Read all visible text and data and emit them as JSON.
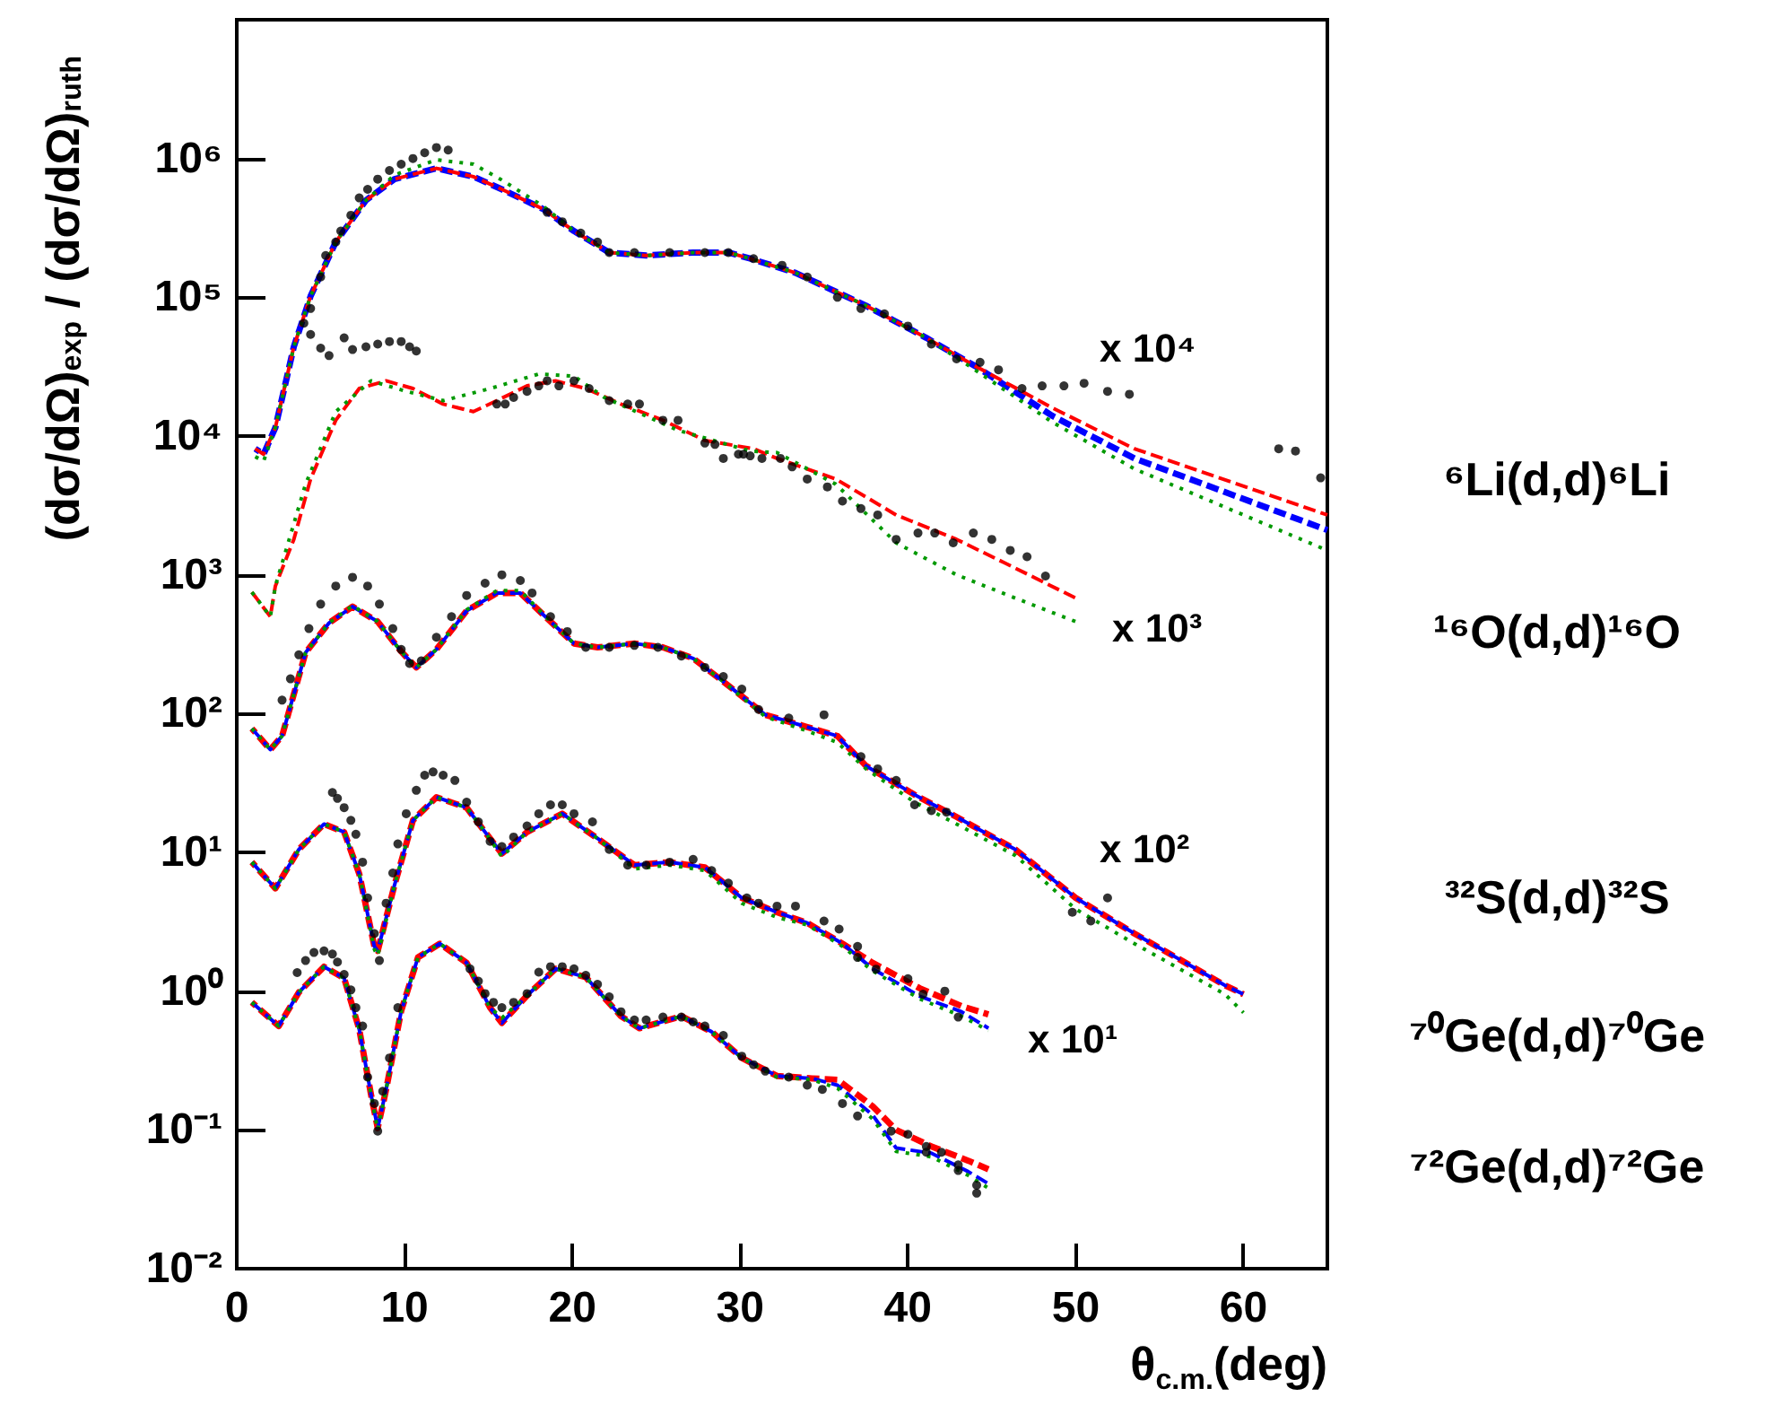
{
  "chart_data": {
    "type": "line",
    "xlabel": "θ$_{c.m.}$(deg)",
    "ylabel": "(dσ/dΩ)$_{exp}$ / (dσ/dΩ)$_{ruth}$",
    "log": "y",
    "xlim": [
      0,
      65
    ],
    "xticks": [
      0,
      10,
      20,
      30,
      40,
      50,
      60
    ],
    "ylim": [
      0.01,
      10000000
    ],
    "yticks": [
      {
        "value": 0.01,
        "label": "10⁻²"
      },
      {
        "value": 0.1,
        "label": "10⁻¹"
      },
      {
        "value": 1,
        "label": "10⁰"
      },
      {
        "value": 10,
        "label": "10¹"
      },
      {
        "value": 100,
        "label": "10²"
      },
      {
        "value": 1000,
        "label": "10³"
      },
      {
        "value": 10000,
        "label": "10⁴"
      },
      {
        "value": 100000,
        "label": "10⁵"
      },
      {
        "value": 1000000,
        "label": "10⁶"
      }
    ],
    "grid": false,
    "series": [
      {
        "color": "#ff0000",
        "line_style": "dashed",
        "marker": "none",
        "x": [
          1.1,
          1.6,
          2.3,
          3.4,
          4.4,
          5.9,
          7.7,
          9.4,
          11.9,
          14.1,
          15.8,
          18.3,
          20.1,
          22.2,
          24.4,
          27.2,
          29.3,
          30.6,
          33.3,
          37.5,
          41.1,
          44,
          48.6,
          53.5,
          65
        ],
        "values": [
          8100,
          7400,
          11500,
          44000,
          102000,
          250000,
          500000,
          710000,
          850000,
          740000,
          600000,
          430000,
          300000,
          210000,
          200000,
          210000,
          210000,
          190000,
          150000,
          87000,
          51000,
          32000,
          16000,
          8100,
          2700
        ]
      },
      {
        "color": "#0000ff",
        "line_style": "dashed",
        "marker": "none",
        "x": [
          1.1,
          1.6,
          2.3,
          3.4,
          4.4,
          5.9,
          7.7,
          9.4,
          11.9,
          14.1,
          15.8,
          18.3,
          20.1,
          22.2,
          24.4,
          27.2,
          29.3,
          30.6,
          33.3,
          37.5,
          41.1,
          44,
          48.6,
          53.5,
          65
        ],
        "values": [
          8100,
          7400,
          11500,
          44000,
          102000,
          250000,
          500000,
          710000,
          850000,
          740000,
          600000,
          430000,
          300000,
          210000,
          200000,
          210000,
          210000,
          190000,
          150000,
          87000,
          51000,
          32000,
          14000,
          6900,
          2100
        ]
      },
      {
        "color": "#009900",
        "line_style": "dotted",
        "marker": "none",
        "x": [
          1.1,
          1.6,
          2.3,
          3.4,
          4.4,
          5.9,
          7.7,
          9.4,
          11.9,
          14.1,
          15.8,
          18.3,
          20.1,
          22.2,
          24.4,
          27.2,
          29.3,
          30.6,
          33.3,
          37.5,
          41.1,
          44,
          48.6,
          53.5,
          65
        ],
        "values": [
          7100,
          6600,
          11500,
          44000,
          102000,
          250000,
          500000,
          760000,
          980000,
          910000,
          700000,
          450000,
          300000,
          210000,
          200000,
          210000,
          210000,
          190000,
          150000,
          87000,
          51000,
          30000,
          12600,
          5800,
          1500
        ]
      },
      {
        "type": "scatter",
        "color": "#000000",
        "marker": "circle",
        "x": [
          4.0,
          4.4,
          5.0,
          5.5,
          6.4,
          6.9,
          7.7,
          8.4,
          9.1,
          9.8,
          10.3,
          10.7,
          4.4,
          5.0,
          5.3,
          5.9,
          6.2,
          6.8,
          7.3,
          7.8,
          8.4,
          9.1,
          9.8,
          10.5,
          11.2,
          11.9,
          12.6,
          18.5,
          19.4,
          20.5,
          21.5,
          22.2,
          23.7,
          25.8,
          27.9,
          29.3,
          30.8,
          32.5,
          34.0,
          35.8,
          37.2,
          38.6,
          40.0,
          41.4,
          42.9,
          44.3,
          45.4,
          46.8,
          48.0,
          49.3,
          50.5,
          51.9,
          53.2,
          62.1,
          63.1,
          64.6
        ],
        "values": [
          65000,
          54000,
          43000,
          38000,
          51000,
          42000,
          44000,
          46000,
          48000,
          48000,
          44000,
          41000,
          83000,
          140000,
          200000,
          250000,
          300000,
          390000,
          520000,
          600000,
          710000,
          820000,
          910000,
          1000000,
          1100000,
          1200000,
          1150000,
          410000,
          350000,
          290000,
          250000,
          210000,
          210000,
          210000,
          210000,
          210000,
          190000,
          170000,
          140000,
          100000,
          83000,
          76000,
          62000,
          46000,
          36000,
          34000,
          30000,
          22000,
          23000,
          23000,
          24000,
          21000,
          20000,
          8100,
          7800,
          5000
        ]
      },
      {
        "color": "#ff0000",
        "line_style": "dashed",
        "marker": "none",
        "x": [
          0.9,
          2.0,
          2.3,
          3.4,
          4.4,
          5.9,
          7.3,
          8.9,
          10.5,
          12.3,
          14.1,
          15.5,
          17.3,
          19.0,
          20.8,
          22.9,
          25.4,
          27.9,
          30.8,
          32.2,
          35.7,
          39.3,
          42.9,
          45.7,
          50.0
        ],
        "values": [
          750,
          500,
          830,
          1800,
          4900,
          13000,
          22000,
          25000,
          22000,
          17000,
          15000,
          18000,
          23000,
          25000,
          22000,
          17000,
          13000,
          9300,
          8100,
          6900,
          4900,
          2700,
          1800,
          1230,
          680
        ]
      },
      {
        "color": "#009900",
        "line_style": "dotted",
        "marker": "none",
        "x": [
          0.9,
          2.0,
          2.3,
          4.1,
          5.9,
          8.0,
          10.1,
          12.3,
          15.1,
          18.0,
          20.1,
          21.9,
          26.3,
          30.6,
          32.2,
          35.7,
          39.3,
          42.9,
          46.4,
          50.0
        ],
        "values": [
          750,
          500,
          830,
          4500,
          15000,
          25000,
          21000,
          18000,
          22000,
          28000,
          27000,
          19000,
          11000,
          7800,
          7600,
          4500,
          1700,
          1000,
          680,
          460
        ]
      },
      {
        "type": "scatter",
        "color": "#000000",
        "marker": "circle",
        "x": [
          15.5,
          16.0,
          16.5,
          17.3,
          18.0,
          18.5,
          19.2,
          20.1,
          21.0,
          22.2,
          23.3,
          24.0,
          25.4,
          26.3,
          27.9,
          28.5,
          29.0,
          29.9,
          30.6,
          30.2,
          31.3,
          32.4,
          33.1,
          34.0,
          35.2,
          36.1,
          37.2,
          38.2,
          39.3,
          40.6,
          41.6,
          42.7,
          43.9,
          45.0,
          46.1,
          47.1,
          48.2
        ],
        "values": [
          17000,
          17000,
          19000,
          21000,
          23000,
          25000,
          23000,
          25000,
          22000,
          18000,
          17000,
          17000,
          13000,
          13000,
          8900,
          8700,
          6900,
          7400,
          7200,
          7400,
          6900,
          6900,
          6000,
          4900,
          4300,
          3400,
          3000,
          2700,
          1800,
          2000,
          2000,
          1700,
          2000,
          1800,
          1500,
          1350,
          980
        ]
      },
      {
        "color": "#ff0000",
        "line_style": "dashed",
        "marker": "none",
        "x": [
          0.9,
          2.0,
          2.7,
          4.1,
          5.5,
          6.9,
          8.4,
          9.8,
          10.7,
          11.9,
          13.7,
          15.5,
          16.9,
          18.7,
          20.1,
          21.5,
          23.7,
          25.4,
          27.2,
          29.0,
          31.5,
          34.0,
          35.8,
          37.5,
          40.4,
          42.9,
          46.4,
          50.0,
          53.5,
          58.9,
          60
        ],
        "values": [
          78,
          55,
          69,
          275,
          450,
          590,
          460,
          280,
          215,
          290,
          550,
          740,
          740,
          460,
          320,
          300,
          320,
          300,
          250,
          170,
          98,
          80,
          69,
          42,
          26,
          18,
          10.5,
          4.7,
          2.6,
          1.1,
          0.95
        ]
      },
      {
        "color": "#0000ff",
        "line_style": "dashed",
        "marker": "none",
        "x": [
          0.9,
          2.0,
          2.7,
          4.1,
          5.5,
          6.9,
          8.4,
          9.8,
          10.7,
          11.9,
          13.7,
          15.5,
          16.9,
          18.7,
          20.1,
          21.5,
          23.7,
          25.4,
          27.2,
          29.0,
          31.5,
          34.0,
          35.8,
          37.5,
          40.4,
          42.9,
          46.4,
          50.0,
          53.5,
          58.9,
          60
        ],
        "values": [
          78,
          55,
          69,
          275,
          450,
          590,
          460,
          280,
          215,
          290,
          550,
          740,
          740,
          460,
          320,
          300,
          320,
          300,
          250,
          170,
          98,
          80,
          69,
          42,
          26,
          18,
          10.5,
          4.7,
          2.6,
          1.1,
          0.95
        ]
      },
      {
        "color": "#009900",
        "line_style": "dotted",
        "marker": "none",
        "x": [
          0.9,
          2.0,
          2.7,
          4.1,
          5.5,
          6.9,
          8.4,
          9.8,
          10.7,
          11.9,
          13.7,
          15.5,
          16.9,
          18.7,
          20.1,
          21.5,
          23.7,
          25.4,
          27.2,
          29.0,
          31.5,
          34.0,
          35.8,
          37.5,
          40.4,
          42.9,
          46.4,
          50.0,
          53.5,
          58.9,
          60
        ],
        "values": [
          78,
          55,
          69,
          275,
          450,
          600,
          460,
          280,
          215,
          290,
          560,
          770,
          770,
          460,
          320,
          300,
          320,
          300,
          250,
          170,
          95,
          75,
          62,
          40,
          23,
          16,
          9.5,
          3.9,
          2.2,
          0.95,
          0.7
        ]
      },
      {
        "type": "scatter",
        "color": "#000000",
        "marker": "circle",
        "x": [
          2.7,
          3.2,
          3.7,
          4.3,
          5.0,
          5.9,
          6.9,
          7.8,
          8.5,
          9.3,
          9.8,
          10.3,
          11.0,
          11.9,
          12.8,
          13.7,
          14.8,
          15.8,
          16.9,
          17.6,
          18.7,
          19.7,
          20.8,
          22.2,
          23.7,
          25.1,
          26.5,
          27.9,
          29.0,
          30.1,
          31.1,
          32.9,
          35.0,
          37.2,
          38.2,
          39.3,
          40.4,
          41.4,
          42.3,
          49.8,
          50.9,
          51.9
        ],
        "values": [
          125,
          178,
          265,
          410,
          615,
          830,
          960,
          830,
          615,
          410,
          290,
          230,
          240,
          355,
          500,
          710,
          870,
          1000,
          910,
          740,
          500,
          390,
          300,
          300,
          310,
          300,
          260,
          215,
          185,
          150,
          107,
          93,
          98,
          49,
          40,
          33,
          22,
          20,
          19.5,
          3.7,
          3.2,
          4.7
        ]
      },
      {
        "color": "#ff0000",
        "line_style": "dashed",
        "marker": "none",
        "x": [
          0.9,
          2.3,
          3.7,
          5.2,
          6.4,
          7.3,
          8.2,
          8.4,
          9.4,
          10.5,
          11.9,
          13.7,
          14.8,
          15.8,
          17.3,
          19.4,
          21.5,
          23.7,
          25.8,
          27.9,
          30.1,
          32.2,
          34.0,
          36.1,
          37.9,
          40.7,
          43.2,
          44.8
        ],
        "values": [
          8.5,
          5.5,
          10.5,
          16,
          14,
          7,
          2.1,
          1.95,
          5.8,
          17,
          25,
          21,
          14,
          9.8,
          14,
          19,
          12.6,
          8.1,
          8.5,
          7.8,
          4.7,
          3.7,
          3.1,
          2.2,
          1.6,
          1.05,
          0.78,
          0.68
        ]
      },
      {
        "color": "#0000ff",
        "line_style": "dashed",
        "marker": "none",
        "x": [
          0.9,
          2.3,
          3.7,
          5.2,
          6.4,
          7.3,
          8.2,
          8.4,
          9.4,
          10.5,
          11.9,
          13.7,
          14.8,
          15.8,
          17.3,
          19.4,
          21.5,
          23.7,
          25.8,
          27.9,
          30.1,
          32.2,
          34.0,
          36.1,
          37.9,
          40.7,
          43.2,
          44.8
        ],
        "values": [
          8.5,
          5.5,
          10.5,
          16,
          14,
          7,
          2.1,
          1.95,
          5.8,
          17,
          25,
          21,
          14,
          9.8,
          14,
          19,
          12.6,
          8.1,
          8.5,
          7.8,
          4.7,
          3.7,
          3.1,
          2.2,
          1.45,
          0.92,
          0.71,
          0.54
        ]
      },
      {
        "color": "#009900",
        "line_style": "dotted",
        "marker": "none",
        "x": [
          0.9,
          2.3,
          3.7,
          5.2,
          6.4,
          7.3,
          8.2,
          8.4,
          9.4,
          10.5,
          11.9,
          13.7,
          14.8,
          15.8,
          17.3,
          19.4,
          21.5,
          23.7,
          25.8,
          27.9,
          30.1,
          32.2,
          34.0,
          36.1,
          37.9,
          40.7,
          43.2,
          44.8
        ],
        "values": [
          8.5,
          5.5,
          10.5,
          16,
          14,
          7,
          2.0,
          1.8,
          5.8,
          17,
          25,
          21,
          14,
          9.3,
          14,
          19,
          12.6,
          7.6,
          8.1,
          7.4,
          4.3,
          3.4,
          3.0,
          2.1,
          1.4,
          0.88,
          0.66,
          0.52
        ]
      },
      {
        "type": "scatter",
        "color": "#000000",
        "marker": "circle",
        "x": [
          5.7,
          6.0,
          6.4,
          6.8,
          7.1,
          7.5,
          7.8,
          8.2,
          8.5,
          8.9,
          9.3,
          9.6,
          10.1,
          10.7,
          11.2,
          11.7,
          12.3,
          13.0,
          13.7,
          14.4,
          15.1,
          15.8,
          16.5,
          17.3,
          18.0,
          18.7,
          19.4,
          20.1,
          21.2,
          22.2,
          23.3,
          24.4,
          25.8,
          27.2,
          28.3,
          29.3,
          30.4,
          31.1,
          32.2,
          33.3,
          35.0,
          35.9,
          37.0,
          37.0,
          38.1,
          40.0,
          40.9,
          42.2,
          43.0
        ],
        "values": [
          27,
          24.5,
          21,
          17,
          13.5,
          8.5,
          4.7,
          2.6,
          1.66,
          4.3,
          7.1,
          11.5,
          19,
          28,
          36,
          38,
          36,
          33,
          23,
          16.6,
          12,
          11,
          12.9,
          15.5,
          19,
          22,
          22,
          19,
          16.6,
          10.5,
          8.1,
          8.1,
          8.5,
          8.9,
          7.4,
          6.0,
          4.7,
          4.3,
          4.1,
          4.1,
          3.2,
          2.8,
          2.1,
          1.75,
          1.44,
          1.23,
          0.95,
          1.0,
          0.65
        ]
      },
      {
        "color": "#ff0000",
        "line_style": "dashed",
        "marker": "none",
        "x": [
          0.9,
          2.5,
          3.7,
          5.2,
          6.4,
          7.3,
          8.0,
          8.4,
          8.9,
          9.8,
          10.8,
          12.1,
          13.7,
          15.1,
          15.8,
          17.3,
          19.0,
          20.8,
          22.9,
          24.0,
          26.5,
          28.3,
          30.1,
          32.2,
          34.3,
          35.8,
          37.9,
          39.3,
          41.4,
          43.6,
          44.8
        ],
        "values": [
          0.83,
          0.56,
          0.98,
          1.5,
          1.24,
          0.53,
          0.18,
          0.103,
          0.195,
          0.72,
          1.75,
          2.2,
          1.6,
          0.76,
          0.59,
          0.93,
          1.45,
          1.26,
          0.66,
          0.54,
          0.66,
          0.51,
          0.33,
          0.245,
          0.235,
          0.23,
          0.148,
          0.1,
          0.076,
          0.06,
          0.052
        ]
      },
      {
        "color": "#0000ff",
        "line_style": "dashed",
        "marker": "none",
        "x": [
          0.9,
          2.5,
          3.7,
          5.2,
          6.4,
          7.3,
          8.0,
          8.4,
          8.9,
          9.8,
          10.8,
          12.1,
          13.7,
          15.1,
          15.8,
          17.3,
          19.0,
          20.8,
          22.9,
          24.0,
          26.5,
          28.3,
          30.1,
          32.2,
          34.3,
          35.8,
          37.9,
          39.3,
          41.4,
          43.6,
          44.8
        ],
        "values": [
          0.83,
          0.56,
          0.98,
          1.5,
          1.24,
          0.53,
          0.18,
          0.103,
          0.195,
          0.72,
          1.75,
          2.2,
          1.6,
          0.76,
          0.59,
          0.93,
          1.45,
          1.26,
          0.66,
          0.54,
          0.66,
          0.51,
          0.33,
          0.245,
          0.235,
          0.21,
          0.128,
          0.074,
          0.068,
          0.05,
          0.041
        ]
      },
      {
        "color": "#009900",
        "line_style": "dotted",
        "marker": "none",
        "x": [
          0.9,
          2.5,
          3.7,
          5.2,
          6.4,
          7.3,
          8.0,
          8.4,
          8.9,
          9.8,
          10.8,
          12.1,
          13.7,
          15.1,
          15.8,
          17.3,
          19.0,
          20.8,
          22.9,
          24.0,
          26.5,
          28.3,
          30.1,
          32.2,
          34.3,
          35.8,
          37.9,
          39.3,
          41.4,
          43.6,
          44.8
        ],
        "values": [
          0.83,
          0.56,
          0.98,
          1.5,
          1.24,
          0.53,
          0.18,
          0.1,
          0.195,
          0.72,
          1.75,
          2.2,
          1.6,
          0.76,
          0.64,
          0.93,
          1.45,
          1.26,
          0.66,
          0.54,
          0.66,
          0.51,
          0.33,
          0.24,
          0.23,
          0.2,
          0.12,
          0.07,
          0.064,
          0.047,
          0.038
        ]
      },
      {
        "type": "scatter",
        "color": "#000000",
        "marker": "circle",
        "x": [
          3.6,
          4.1,
          4.6,
          5.2,
          5.7,
          6.0,
          6.4,
          6.8,
          7.1,
          7.5,
          7.8,
          8.2,
          8.4,
          8.7,
          9.1,
          9.6,
          13.9,
          14.4,
          14.8,
          15.3,
          15.8,
          16.5,
          17.3,
          18.0,
          18.7,
          19.4,
          20.1,
          20.8,
          21.5,
          22.2,
          22.9,
          23.7,
          24.4,
          25.4,
          26.5,
          27.2,
          27.9,
          29.0,
          30.1,
          30.8,
          31.5,
          32.9,
          34.0,
          34.9,
          36.1,
          37.0,
          39.0,
          40.0,
          41.1,
          41.1,
          42.0,
          43.0,
          43.0,
          44.1,
          44.1
        ],
        "values": [
          1.36,
          1.66,
          1.9,
          1.95,
          1.85,
          1.62,
          1.32,
          1.02,
          0.76,
          0.56,
          0.24,
          0.155,
          0.098,
          0.19,
          0.33,
          0.76,
          1.45,
          1.18,
          0.96,
          0.83,
          0.76,
          0.83,
          0.96,
          1.37,
          1.5,
          1.5,
          1.45,
          1.3,
          1.12,
          0.91,
          0.71,
          0.62,
          0.62,
          0.65,
          0.65,
          0.6,
          0.56,
          0.48,
          0.34,
          0.295,
          0.265,
          0.24,
          0.21,
          0.196,
          0.155,
          0.126,
          0.098,
          0.093,
          0.076,
          0.069,
          0.069,
          0.056,
          0.051,
          0.04,
          0.035
        ]
      }
    ],
    "annotations": [
      "⁶Li(d,d)⁶Li",
      "¹⁶O(d,d)¹⁶O",
      "³²S(d,d)³²S",
      "⁷⁰Ge(d,d)⁷⁰Ge",
      "⁷²Ge(d,d)⁷²Ge",
      "x 10⁴",
      "x 10³",
      "x 10²",
      "x 10¹"
    ]
  }
}
